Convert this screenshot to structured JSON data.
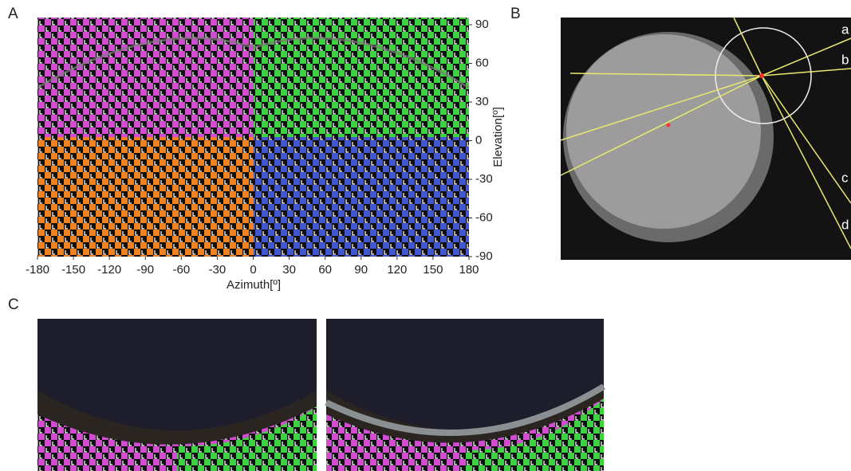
{
  "panels": [
    {
      "label": "A",
      "x_axis": {
        "title": "Azimuth[º]",
        "lim": [
          -180,
          180
        ],
        "ticks": [
          -180,
          -150,
          -120,
          -90,
          -60,
          -30,
          0,
          30,
          60,
          90,
          120,
          150,
          180
        ]
      },
      "y_axis": {
        "title": "Elevation[º]",
        "lim": [
          -90,
          90
        ],
        "ticks": [
          90,
          60,
          30,
          0,
          -30,
          -60,
          -90
        ]
      }
    },
    {
      "label": "B",
      "markers": [
        "a",
        "b",
        "c",
        "d"
      ]
    },
    {
      "label": "C"
    }
  ]
}
